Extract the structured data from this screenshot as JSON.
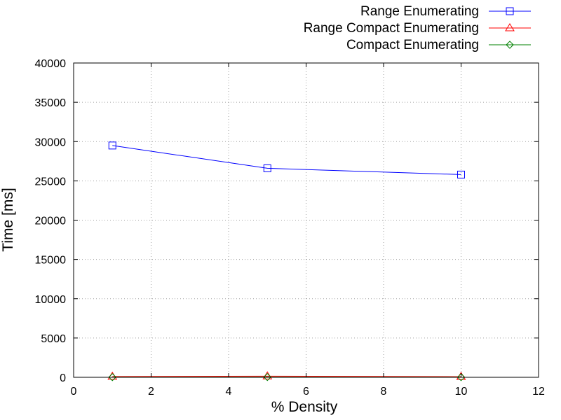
{
  "chart_data": {
    "type": "line",
    "xlabel": "% Density",
    "ylabel": "Time [ms]",
    "xlim": [
      0,
      12
    ],
    "ylim": [
      0,
      40000
    ],
    "xticks": [
      0,
      2,
      4,
      6,
      8,
      10,
      12
    ],
    "yticks": [
      0,
      5000,
      10000,
      15000,
      20000,
      25000,
      30000,
      35000,
      40000
    ],
    "grid": true,
    "legend_position": "top-right, outside plot",
    "x": [
      1,
      5,
      10
    ],
    "series": [
      {
        "name": "Range Enumerating",
        "values": [
          29500,
          26600,
          25800
        ],
        "color": "#0000ff",
        "marker": "square"
      },
      {
        "name": "Range Compact Enumerating",
        "values": [
          100,
          150,
          80
        ],
        "color": "#ff0000",
        "marker": "triangle"
      },
      {
        "name": "Compact Enumerating",
        "values": [
          20,
          30,
          20
        ],
        "color": "#008000",
        "marker": "diamond"
      }
    ]
  }
}
